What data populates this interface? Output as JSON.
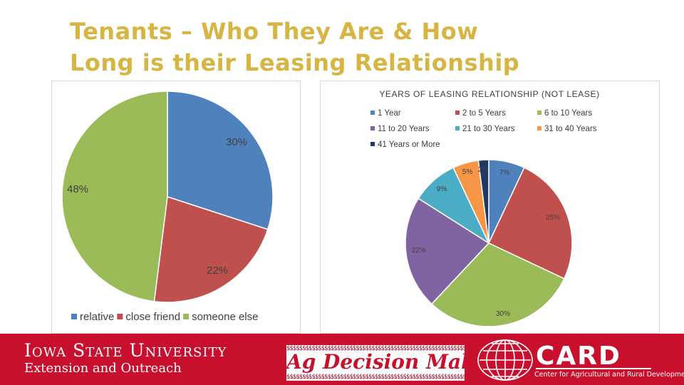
{
  "slide": {
    "title_line1": "Tenants – Who They Are & How",
    "title_line2": "Long is their Leasing Relationship"
  },
  "chart_data": [
    {
      "type": "pie",
      "title": "",
      "categories": [
        "relative",
        "close friend",
        "someone else"
      ],
      "values": [
        30,
        22,
        48
      ],
      "labels": [
        "30%",
        "22%",
        "48%"
      ],
      "colors": [
        "#4f81bd",
        "#c0504d",
        "#9bbb59"
      ],
      "legend_position": "bottom"
    },
    {
      "type": "pie",
      "title": "YEARS OF LEASING RELATIONSHIP (NOT LEASE)",
      "categories": [
        "1 Year",
        "2 to 5 Years",
        "6 to 10 Years",
        "11 to 20 Years",
        "21 to 30 Years",
        "31 to 40 Years",
        "41 Years or More"
      ],
      "values": [
        7,
        25,
        30,
        22,
        9,
        5,
        2
      ],
      "labels": [
        "7%",
        "25%",
        "30%",
        "22%",
        "9%",
        "5%",
        "2%"
      ],
      "colors": [
        "#4f81bd",
        "#c0504d",
        "#9bbb59",
        "#8064a2",
        "#4bacc6",
        "#f79646",
        "#1f3864"
      ],
      "legend_position": "top"
    }
  ],
  "footer": {
    "isu_line1": "Iowa State University",
    "isu_line2": "Extension and Outreach",
    "adm_text": "Ag Decision Maker",
    "adm_pattern": "$$$$$$$$$$$$$$$$$$$$$$$$$$$$$$$$$$$$$$$$$$$$$$$$$$$$$$$$$$$$$$$$",
    "card_text": "CARD",
    "card_sub": "Center for Agricultural and Rural Development",
    "background": "#c8102e"
  }
}
